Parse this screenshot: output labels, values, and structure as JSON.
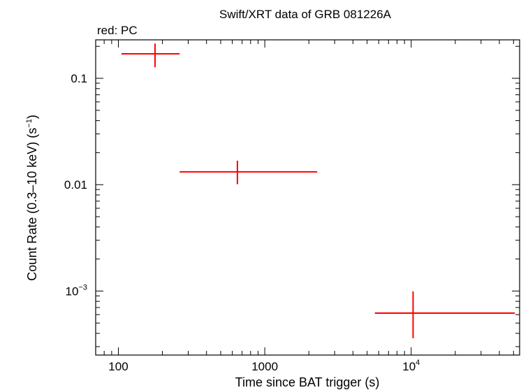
{
  "chart_data": {
    "type": "scatter",
    "title": "Swift/XRT data of GRB 081226A",
    "subtitle": "red: PC",
    "xlabel": "Time since BAT trigger (s)",
    "ylabel_main": "Count Rate (0.3–10 keV) (s",
    "ylabel_sup": "−1",
    "ylabel_close": ")",
    "x_scale": "log",
    "y_scale": "log",
    "xlim": [
      70,
      55000
    ],
    "ylim": [
      0.00025,
      0.23
    ],
    "grid": false,
    "x_ticks": [
      {
        "value": 100,
        "label": "100",
        "sup": ""
      },
      {
        "value": 1000,
        "label": "1000",
        "sup": ""
      },
      {
        "value": 10000,
        "label": "10",
        "sup": "4"
      }
    ],
    "y_ticks": [
      {
        "value": 0.1,
        "label": "0.1",
        "sup": ""
      },
      {
        "value": 0.01,
        "label": "0.01",
        "sup": ""
      },
      {
        "value": 0.001,
        "label": "10",
        "sup": "−3"
      }
    ],
    "series": [
      {
        "color": "#ff0000",
        "points": [
          {
            "x": 178,
            "x_lo": 105,
            "x_hi": 262,
            "y": 0.17,
            "y_lo": 0.127,
            "y_hi": 0.212
          },
          {
            "x": 650,
            "x_lo": 262,
            "x_hi": 2280,
            "y": 0.0132,
            "y_lo": 0.0101,
            "y_hi": 0.0168
          },
          {
            "x": 10300,
            "x_lo": 5650,
            "x_hi": 51000,
            "y": 0.00062,
            "y_lo": 0.00036,
            "y_hi": 0.00099
          }
        ]
      }
    ]
  }
}
